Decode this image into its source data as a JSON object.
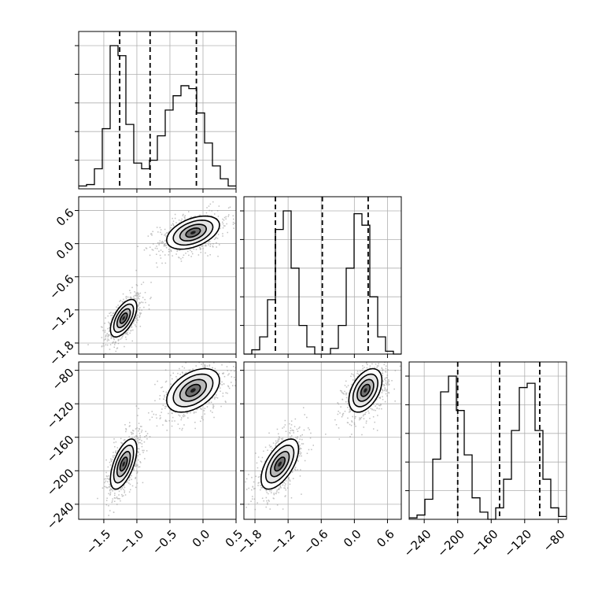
{
  "chart_data": {
    "type": "corner",
    "title": "",
    "params": [
      {
        "ticks": [
          -1.5,
          -1.0,
          -0.5,
          0.0,
          0.5
        ],
        "tick_labels": [
          "−1.5",
          "−1.0",
          "−0.5",
          "0.0",
          "0.5"
        ],
        "range": [
          -1.88,
          0.5
        ],
        "quantiles": [
          -1.26,
          -0.8,
          -0.1
        ],
        "hist_edges_range": [
          -1.88,
          0.5
        ],
        "hist_counts": [
          0.02,
          0.03,
          0.14,
          0.42,
          1.0,
          0.93,
          0.45,
          0.18,
          0.14,
          0.2,
          0.37,
          0.55,
          0.65,
          0.72,
          0.7,
          0.53,
          0.32,
          0.16,
          0.07,
          0.02
        ]
      },
      {
        "ticks": [
          -1.8,
          -1.2,
          -0.6,
          0.0,
          0.6
        ],
        "tick_labels": [
          "−1.8",
          "−1.2",
          "−0.6",
          "0.0",
          "0.6"
        ],
        "range": [
          -2.0,
          0.85
        ],
        "quantiles": [
          -1.43,
          -0.58,
          0.25
        ],
        "hist_edges_range": [
          -2.0,
          0.85
        ],
        "hist_counts": [
          0.0,
          0.03,
          0.12,
          0.38,
          0.87,
          1.0,
          0.6,
          0.2,
          0.05,
          0.0,
          0.0,
          0.04,
          0.2,
          0.6,
          0.98,
          0.9,
          0.4,
          0.12,
          0.02,
          0.0
        ]
      },
      {
        "ticks": [
          -240,
          -200,
          -160,
          -120,
          -80
        ],
        "tick_labels": [
          "−240",
          "−200",
          "−160",
          "−120",
          "−80"
        ],
        "range": [
          -258,
          -70
        ],
        "quantiles": [
          -200,
          -150,
          -102
        ],
        "hist_edges_range": [
          -258,
          -70
        ],
        "hist_counts": [
          0.01,
          0.03,
          0.14,
          0.42,
          0.89,
          1.0,
          0.76,
          0.45,
          0.15,
          0.05,
          0.0,
          0.08,
          0.28,
          0.62,
          0.92,
          0.95,
          0.62,
          0.28,
          0.08,
          0.02
        ]
      }
    ],
    "clusters": [
      {
        "mean": [
          -1.2,
          -1.35,
          -192
        ],
        "sd": [
          0.1,
          0.17,
          15
        ],
        "rho": {
          "0_1": 0.6,
          "0_2": 0.6,
          "1_2": 0.6
        }
      },
      {
        "mean": [
          -0.15,
          0.2,
          -104
        ],
        "sd": [
          0.2,
          0.15,
          13
        ],
        "rho": {
          "0_1": 0.45,
          "0_2": 0.45,
          "1_2": 0.45
        }
      }
    ],
    "grid": true
  }
}
